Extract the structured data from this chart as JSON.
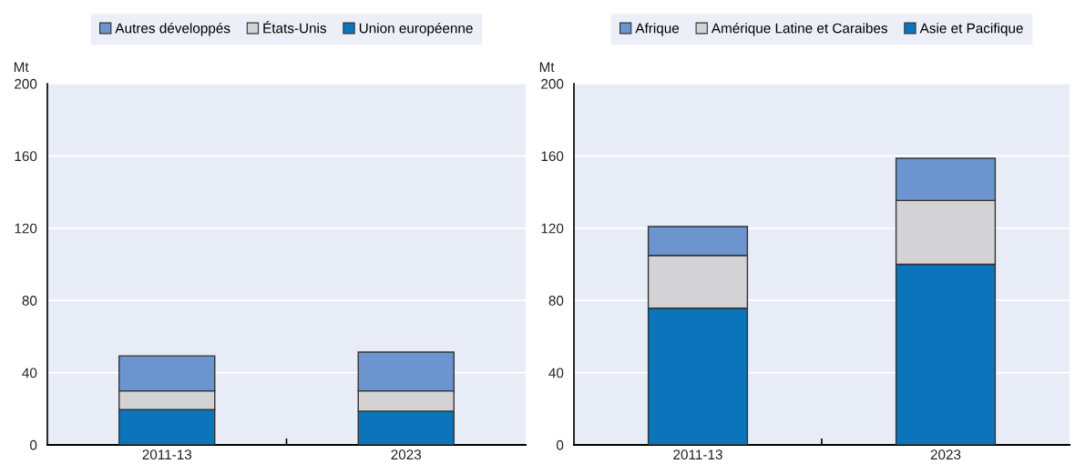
{
  "chart_data": [
    {
      "type": "bar",
      "stacked": true,
      "ylabel": "Mt",
      "categories": [
        "2011-13",
        "2023"
      ],
      "ylim": [
        0,
        200
      ],
      "yticks": [
        0,
        40,
        80,
        120,
        160,
        200
      ],
      "grid": "y",
      "legend": "top",
      "series": [
        {
          "name": "Union européenne",
          "color": "#0b74bb",
          "values": [
            19.6,
            18.7
          ]
        },
        {
          "name": "États-Unis",
          "color": "#d3d3d5",
          "values": [
            10.3,
            11.2
          ]
        },
        {
          "name": "Autres développés",
          "color": "#6c95cf",
          "values": [
            19.4,
            21.5
          ]
        }
      ]
    },
    {
      "type": "bar",
      "stacked": true,
      "ylabel": "Mt",
      "categories": [
        "2011-13",
        "2023"
      ],
      "ylim": [
        0,
        200
      ],
      "yticks": [
        0,
        40,
        80,
        120,
        160,
        200
      ],
      "grid": "y",
      "legend": "top",
      "series": [
        {
          "name": "Asie et Pacifique",
          "color": "#0b74bb",
          "values": [
            75.7,
            100
          ]
        },
        {
          "name": "Amérique Latine et Caraibes",
          "color": "#d3d3d5",
          "values": [
            29.2,
            35.3
          ]
        },
        {
          "name": "Afrique",
          "color": "#6c95cf",
          "values": [
            16.0,
            23.4
          ]
        }
      ]
    }
  ]
}
